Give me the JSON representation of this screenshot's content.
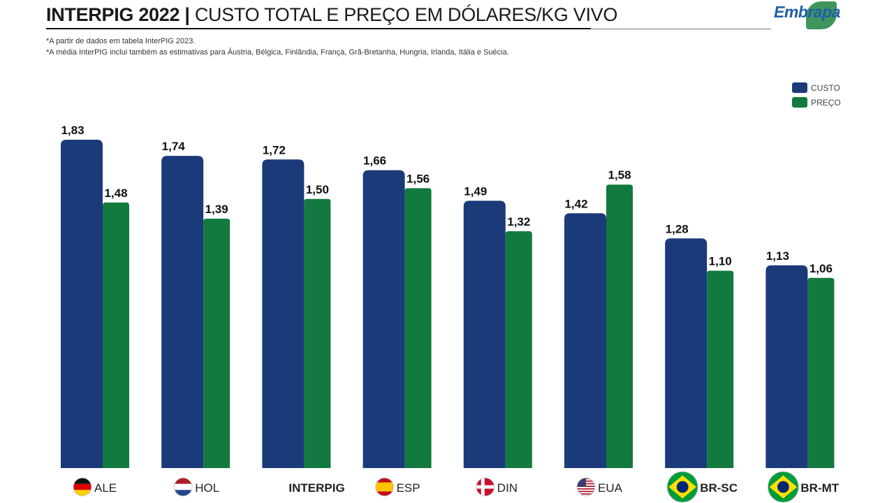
{
  "header": {
    "title_bold": "INTERPIG 2022 |",
    "title_rest": "CUSTO TOTAL E PREÇO EM DÓLARES/KG VIVO",
    "notes": [
      "*A partir de dados em tabela InterPIG 2023.",
      "*A média InterPIG inclui também as estimativas para Áustria, Bélgica, Finlândia, França, Grã-Bretanha, Hungria, Irlanda, Itália e Suécia."
    ],
    "logo": "Embrapa"
  },
  "colors": {
    "custo": "#1b3a7a",
    "preco": "#127a3e"
  },
  "chart_data": {
    "type": "bar",
    "categories": [
      "ALE",
      "HOL",
      "INTERPIG",
      "ESP",
      "DIN",
      "EUA",
      "BR-SC",
      "BR-MT"
    ],
    "category_flags": [
      "germany-flag-icon",
      "netherlands-flag-icon",
      "",
      "spain-flag-icon",
      "denmark-flag-icon",
      "usa-flag-icon",
      "brazil-flag-icon",
      "brazil-flag-icon"
    ],
    "series": [
      {
        "name": "CUSTO",
        "values": [
          1.83,
          1.74,
          1.72,
          1.66,
          1.49,
          1.42,
          1.28,
          1.13
        ],
        "labels": [
          "1,83",
          "1,74",
          "1,72",
          "1,66",
          "1,49",
          "1,42",
          "1,28",
          "1,13"
        ]
      },
      {
        "name": "PREÇO",
        "values": [
          1.48,
          1.39,
          1.5,
          1.56,
          1.32,
          1.58,
          1.1,
          1.06
        ],
        "labels": [
          "1,48",
          "1,39",
          "1,50",
          "1,56",
          "1,32",
          "1,58",
          "1,10",
          "1,06"
        ]
      }
    ],
    "ylim": [
      0,
      1.85
    ],
    "grid": false,
    "legend_position": "top-right"
  }
}
